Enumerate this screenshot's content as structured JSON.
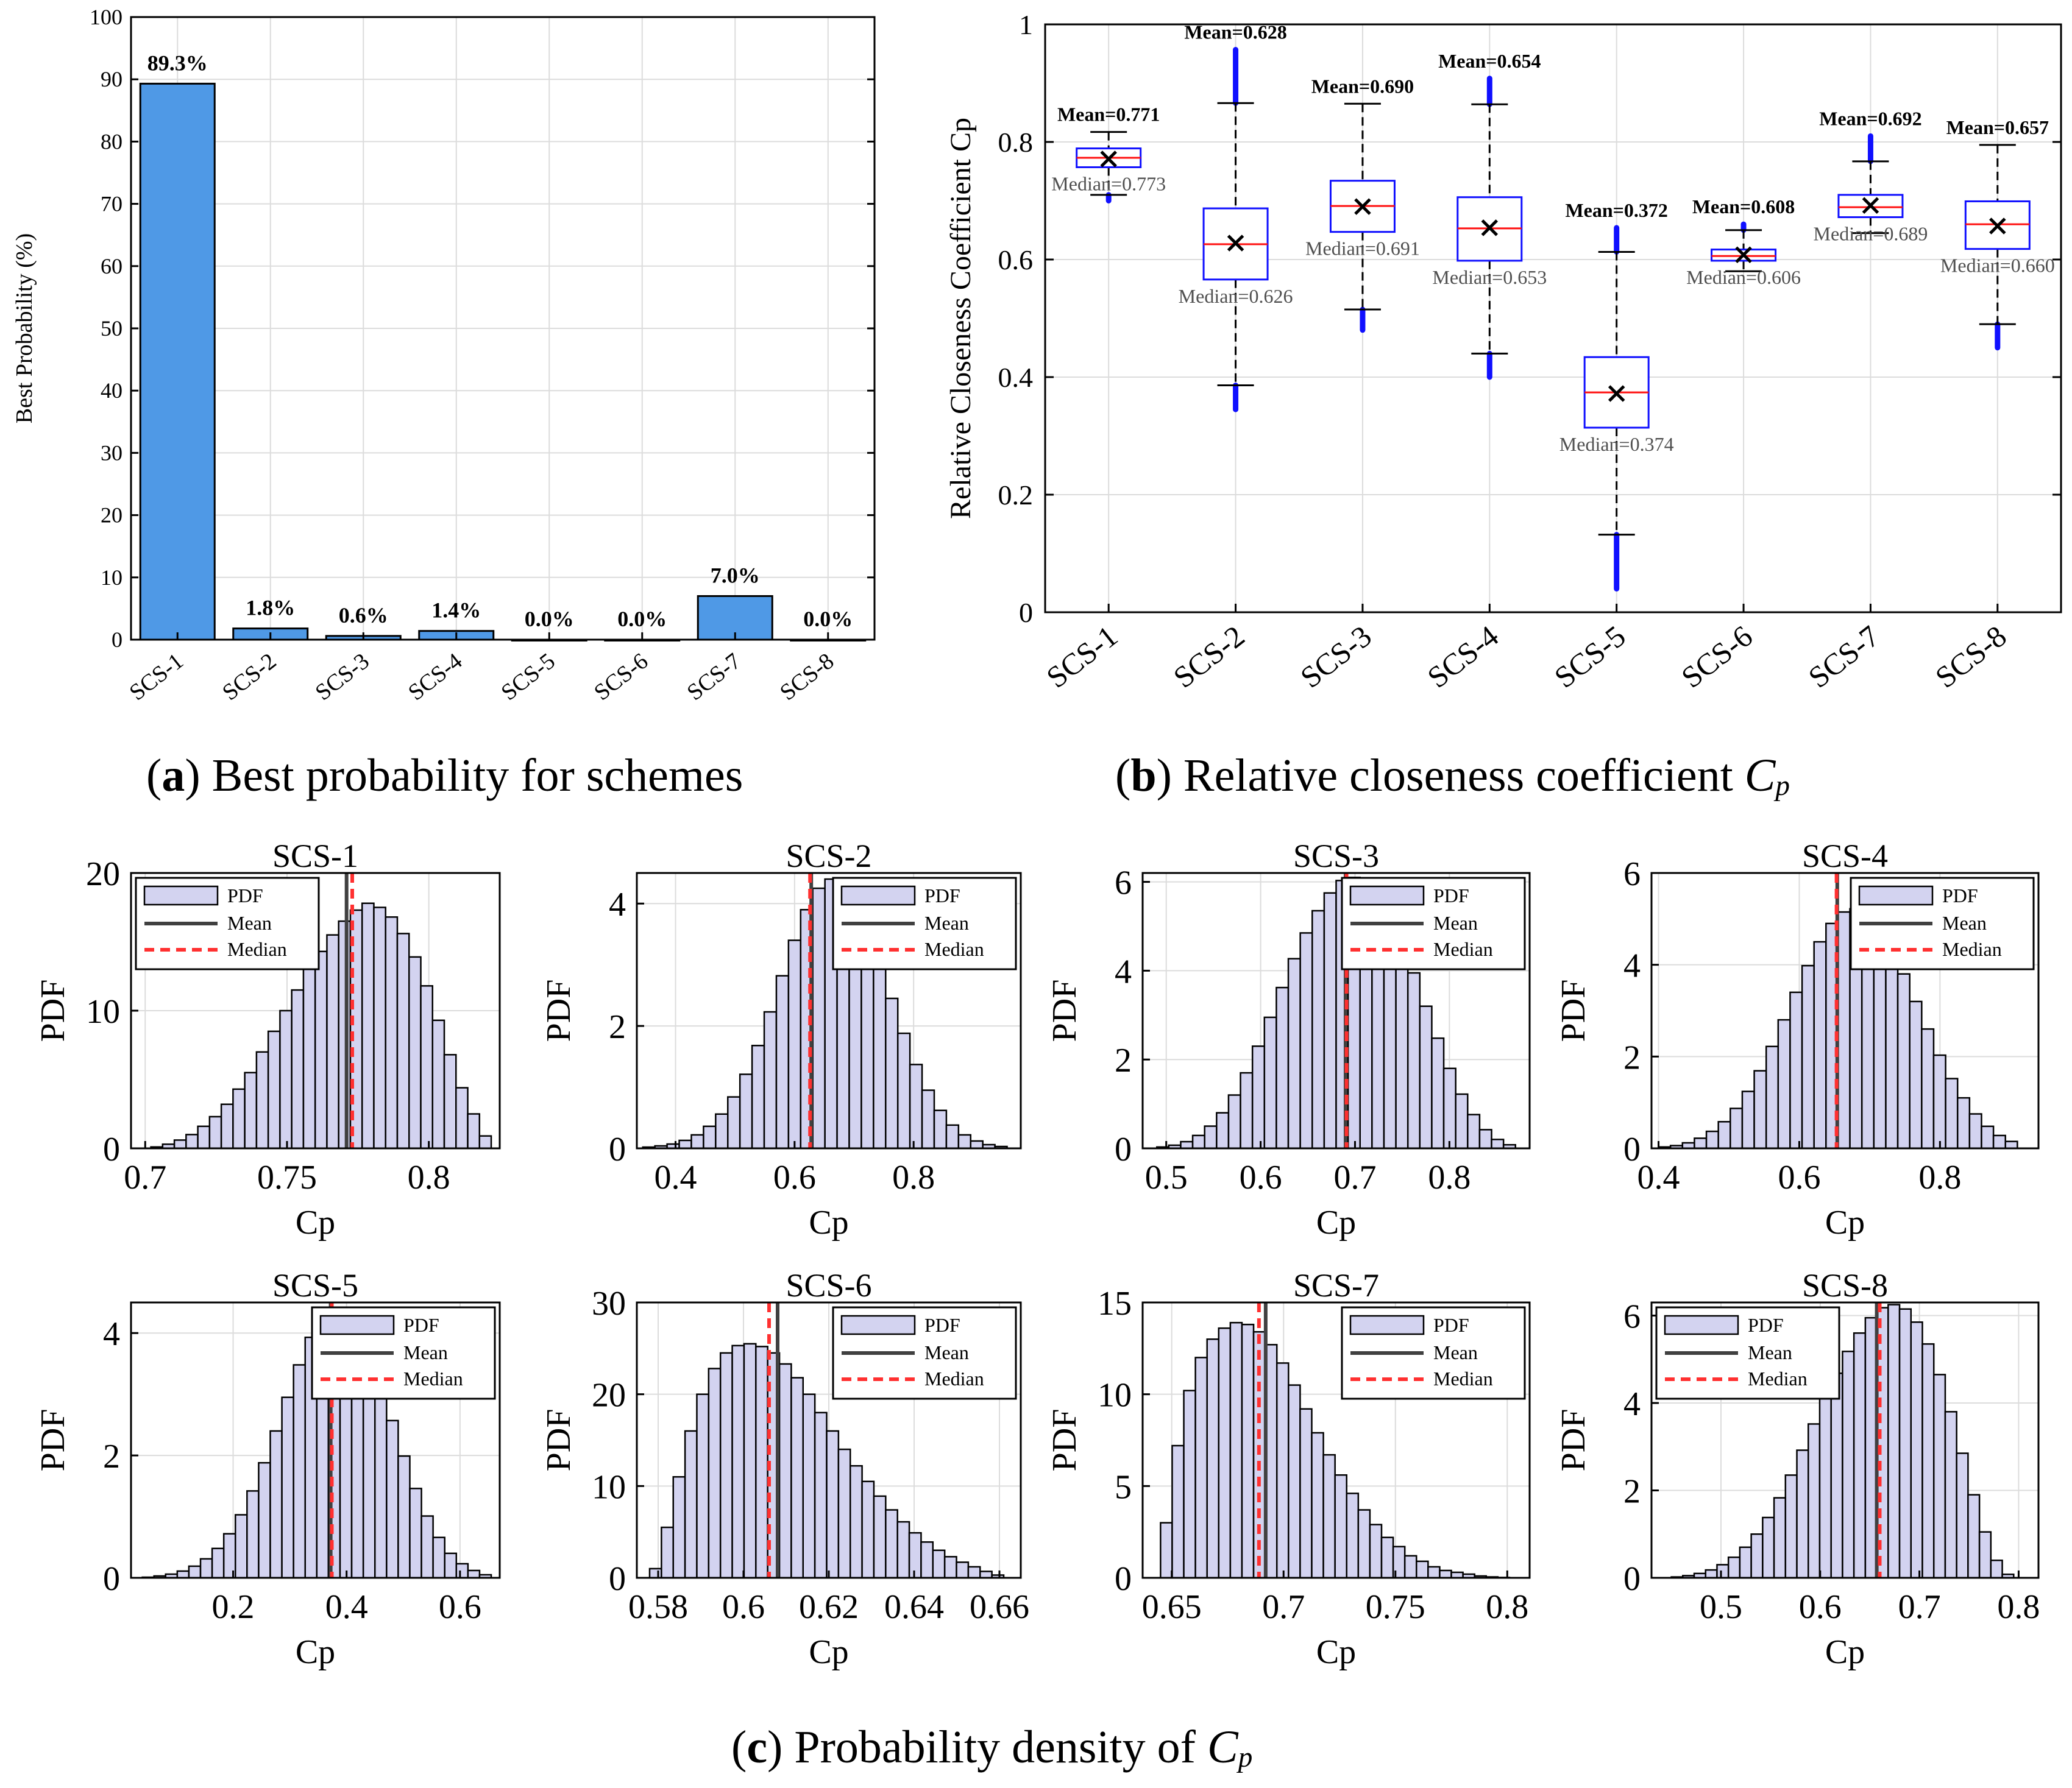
{
  "figure": {
    "caption_a": {
      "label": "a",
      "text": "Best probability for schemes"
    },
    "caption_b": {
      "label": "b",
      "text": "Relative closeness coefficient",
      "symbol": "C",
      "subscript": "p"
    },
    "caption_c": {
      "label": "c",
      "text": "Probability density of",
      "symbol": "C",
      "subscript": "p"
    }
  },
  "chart_data": [
    {
      "id": "a",
      "type": "bar",
      "ylabel": "Best Probability (%)",
      "xlabel": "",
      "categories": [
        "SCS-1",
        "SCS-2",
        "SCS-3",
        "SCS-4",
        "SCS-5",
        "SCS-6",
        "SCS-7",
        "SCS-8"
      ],
      "values": [
        89.3,
        1.8,
        0.6,
        1.4,
        0.0,
        0.0,
        7.0,
        0.0
      ],
      "data_labels": [
        "89.3%",
        "1.8%",
        "0.6%",
        "1.4%",
        "0.0%",
        "0.0%",
        "7.0%",
        "0.0%"
      ],
      "ylim": [
        0,
        100
      ],
      "yticks": [
        0,
        10,
        20,
        30,
        40,
        50,
        60,
        70,
        80,
        90,
        100
      ],
      "bar_color": "#4f99e6",
      "grid": true
    },
    {
      "id": "b",
      "type": "box",
      "ylabel": "Relative Closeness Coefficient Cp",
      "categories": [
        "SCS-1",
        "SCS-2",
        "SCS-3",
        "SCS-4",
        "SCS-5",
        "SCS-6",
        "SCS-7",
        "SCS-8"
      ],
      "ylim": [
        0,
        1
      ],
      "yticks": [
        0,
        0.2,
        0.4,
        0.6,
        0.8,
        1
      ],
      "ytick_labels": [
        "0",
        "0.2",
        "0.4",
        "0.6",
        "0.8",
        "1"
      ],
      "boxes": [
        {
          "mean": 0.771,
          "median": 0.773,
          "q1": 0.757,
          "q3": 0.789,
          "whisker_low": 0.71,
          "whisker_high": 0.817,
          "outlier_low": [
            0.7,
            0.71
          ],
          "outlier_high": null,
          "mean_label": "Mean=0.771",
          "median_label": "Median=0.773"
        },
        {
          "mean": 0.628,
          "median": 0.626,
          "q1": 0.566,
          "q3": 0.687,
          "whisker_low": 0.386,
          "whisker_high": 0.866,
          "outlier_low": [
            0.345,
            0.386
          ],
          "outlier_high": [
            0.866,
            0.957
          ],
          "mean_label": "Mean=0.628",
          "median_label": "Median=0.626"
        },
        {
          "mean": 0.69,
          "median": 0.691,
          "q1": 0.647,
          "q3": 0.734,
          "whisker_low": 0.515,
          "whisker_high": 0.865,
          "outlier_low": [
            0.48,
            0.515
          ],
          "outlier_high": null,
          "mean_label": "Mean=0.690",
          "median_label": "Median=0.691"
        },
        {
          "mean": 0.654,
          "median": 0.653,
          "q1": 0.598,
          "q3": 0.706,
          "whisker_low": 0.44,
          "whisker_high": 0.864,
          "outlier_low": [
            0.4,
            0.44
          ],
          "outlier_high": [
            0.864,
            0.908
          ],
          "mean_label": "Mean=0.654",
          "median_label": "Median=0.653"
        },
        {
          "mean": 0.372,
          "median": 0.374,
          "q1": 0.314,
          "q3": 0.434,
          "whisker_low": 0.132,
          "whisker_high": 0.613,
          "outlier_low": [
            0.04,
            0.132
          ],
          "outlier_high": [
            0.613,
            0.654
          ],
          "mean_label": "Mean=0.372",
          "median_label": "Median=0.374"
        },
        {
          "mean": 0.608,
          "median": 0.606,
          "q1": 0.598,
          "q3": 0.617,
          "whisker_low": 0.58,
          "whisker_high": 0.65,
          "outlier_low": null,
          "outlier_high": [
            0.65,
            0.66
          ],
          "mean_label": "Mean=0.608",
          "median_label": "Median=0.606"
        },
        {
          "mean": 0.692,
          "median": 0.689,
          "q1": 0.672,
          "q3": 0.71,
          "whisker_low": 0.645,
          "whisker_high": 0.767,
          "outlier_low": null,
          "outlier_high": [
            0.767,
            0.81
          ],
          "mean_label": "Mean=0.692",
          "median_label": "Median=0.689"
        },
        {
          "mean": 0.657,
          "median": 0.66,
          "q1": 0.618,
          "q3": 0.699,
          "whisker_low": 0.49,
          "whisker_high": 0.795,
          "outlier_low": [
            0.45,
            0.49
          ],
          "outlier_high": null,
          "mean_label": "Mean=0.657",
          "median_label": "Median=0.660"
        }
      ],
      "grid": true
    },
    {
      "id": "c",
      "type": "histogram",
      "legend_labels": [
        "PDF",
        "Mean",
        "Median"
      ],
      "xlabel": "Cp",
      "ylabel": "PDF",
      "bar_color": "#d3d3f0",
      "mean_color": "#404040",
      "median_color": "#ff3030",
      "subplots": [
        {
          "title": "SCS-1",
          "xlim": [
            0.695,
            0.825
          ],
          "ylim": [
            0,
            20
          ],
          "xticks": [
            0.7,
            0.75,
            0.8
          ],
          "xtick_labels": [
            "0.7",
            "0.75",
            "0.8"
          ],
          "yticks": [
            0,
            10,
            20
          ],
          "ytick_labels": [
            "0",
            "10",
            "20"
          ],
          "mean": 0.771,
          "median": 0.773,
          "hist_x0": 0.702,
          "hist_x1": 0.822,
          "densities": [
            0.1,
            0.3,
            0.6,
            1.0,
            1.6,
            2.3,
            3.2,
            4.3,
            5.5,
            7.0,
            8.5,
            10.0,
            11.5,
            13.0,
            14.3,
            15.5,
            16.5,
            17.3,
            17.8,
            17.5,
            16.8,
            15.6,
            13.9,
            11.8,
            9.3,
            6.8,
            4.4,
            2.5,
            0.9
          ],
          "legend_pos": "left"
        },
        {
          "title": "SCS-2",
          "xlim": [
            0.335,
            0.98
          ],
          "ylim": [
            0,
            4.5
          ],
          "xticks": [
            0.4,
            0.6,
            0.8
          ],
          "xtick_labels": [
            "0.4",
            "0.6",
            "0.8"
          ],
          "yticks": [
            0,
            2,
            4
          ],
          "ytick_labels": [
            "0",
            "2",
            "4"
          ],
          "mean": 0.628,
          "median": 0.626,
          "hist_x0": 0.345,
          "hist_x1": 0.957,
          "densities": [
            0.02,
            0.04,
            0.07,
            0.13,
            0.22,
            0.36,
            0.56,
            0.84,
            1.21,
            1.68,
            2.23,
            2.82,
            3.4,
            3.9,
            4.25,
            4.4,
            4.33,
            4.05,
            3.6,
            3.05,
            2.45,
            1.88,
            1.37,
            0.95,
            0.62,
            0.38,
            0.22,
            0.12,
            0.06,
            0.03
          ],
          "legend_pos": "right"
        },
        {
          "title": "SCS-3",
          "xlim": [
            0.475,
            0.885
          ],
          "ylim": [
            0,
            6.2
          ],
          "xticks": [
            0.5,
            0.6,
            0.7,
            0.8
          ],
          "xtick_labels": [
            "0.5",
            "0.6",
            "0.7",
            "0.8"
          ],
          "yticks": [
            0,
            2,
            4,
            6
          ],
          "ytick_labels": [
            "0",
            "2",
            "4",
            "6"
          ],
          "mean": 0.69,
          "median": 0.691,
          "hist_x0": 0.49,
          "hist_x1": 0.87,
          "densities": [
            0.03,
            0.07,
            0.15,
            0.29,
            0.5,
            0.8,
            1.2,
            1.7,
            2.3,
            2.95,
            3.62,
            4.27,
            4.85,
            5.35,
            5.75,
            6.03,
            6.1,
            6.0,
            5.7,
            5.25,
            4.65,
            3.95,
            3.2,
            2.48,
            1.8,
            1.22,
            0.76,
            0.42,
            0.2,
            0.08
          ],
          "legend_pos": "right"
        },
        {
          "title": "SCS-4",
          "xlim": [
            0.39,
            0.94
          ],
          "ylim": [
            0,
            6
          ],
          "xticks": [
            0.4,
            0.6,
            0.8
          ],
          "xtick_labels": [
            "0.4",
            "0.6",
            "0.8"
          ],
          "yticks": [
            0,
            2,
            4,
            6
          ],
          "ytick_labels": [
            "0",
            "2",
            "4",
            "6"
          ],
          "mean": 0.654,
          "median": 0.653,
          "hist_x0": 0.4,
          "hist_x1": 0.91,
          "densities": [
            0.03,
            0.06,
            0.12,
            0.22,
            0.37,
            0.58,
            0.87,
            1.24,
            1.69,
            2.22,
            2.8,
            3.4,
            3.98,
            4.5,
            4.9,
            5.15,
            5.22,
            5.1,
            4.8,
            4.35,
            3.8,
            3.2,
            2.6,
            2.03,
            1.52,
            1.1,
            0.75,
            0.48,
            0.28,
            0.15
          ],
          "legend_pos": "right"
        },
        {
          "title": "SCS-5",
          "xlim": [
            0.02,
            0.67
          ],
          "ylim": [
            0,
            4.5
          ],
          "xticks": [
            0.2,
            0.4,
            0.6
          ],
          "xtick_labels": [
            "0.2",
            "0.4",
            "0.6"
          ],
          "yticks": [
            0,
            2,
            4
          ],
          "ytick_labels": [
            "0",
            "2",
            "4"
          ],
          "mean": 0.372,
          "median": 0.374,
          "hist_x0": 0.04,
          "hist_x1": 0.655,
          "densities": [
            0.01,
            0.03,
            0.06,
            0.11,
            0.19,
            0.31,
            0.48,
            0.72,
            1.03,
            1.42,
            1.88,
            2.4,
            2.95,
            3.48,
            3.93,
            4.25,
            4.4,
            4.35,
            4.1,
            3.68,
            3.15,
            2.57,
            1.99,
            1.46,
            1.01,
            0.66,
            0.4,
            0.23,
            0.12,
            0.05
          ],
          "legend_pos": "right"
        },
        {
          "title": "SCS-6",
          "xlim": [
            0.575,
            0.665
          ],
          "ylim": [
            0,
            30
          ],
          "xticks": [
            0.58,
            0.6,
            0.62,
            0.64,
            0.66
          ],
          "xtick_labels": [
            "0.58",
            "0.6",
            "0.62",
            "0.64",
            "0.66"
          ],
          "yticks": [
            0,
            10,
            20,
            30
          ],
          "ytick_labels": [
            "0",
            "10",
            "20",
            "30"
          ],
          "mean": 0.608,
          "median": 0.606,
          "hist_x0": 0.578,
          "hist_x1": 0.661,
          "densities": [
            1.0,
            5.5,
            11.0,
            16.0,
            20.0,
            22.8,
            24.5,
            25.3,
            25.5,
            25.2,
            24.5,
            23.3,
            21.8,
            20.0,
            18.0,
            16.0,
            14.0,
            12.2,
            10.5,
            8.9,
            7.4,
            6.1,
            4.9,
            3.9,
            3.0,
            2.3,
            1.7,
            1.2,
            0.7,
            0.3
          ],
          "legend_pos": "right"
        },
        {
          "title": "SCS-7",
          "xlim": [
            0.637,
            0.81
          ],
          "ylim": [
            0,
            15
          ],
          "xticks": [
            0.65,
            0.7,
            0.75,
            0.8
          ],
          "xtick_labels": [
            "0.65",
            "0.7",
            "0.75",
            "0.8"
          ],
          "yticks": [
            0,
            5,
            10,
            15
          ],
          "ytick_labels": [
            "0",
            "5",
            "10",
            "15"
          ],
          "mean": 0.692,
          "median": 0.689,
          "hist_x0": 0.645,
          "hist_x1": 0.801,
          "densities": [
            3.0,
            7.2,
            10.2,
            12.0,
            13.0,
            13.6,
            13.9,
            13.8,
            13.4,
            12.7,
            11.7,
            10.5,
            9.2,
            7.9,
            6.7,
            5.6,
            4.6,
            3.7,
            2.9,
            2.2,
            1.7,
            1.2,
            0.9,
            0.6,
            0.4,
            0.3,
            0.2,
            0.1,
            0.05,
            0.02
          ],
          "legend_pos": "right"
        },
        {
          "title": "SCS-8",
          "xlim": [
            0.43,
            0.82
          ],
          "ylim": [
            0,
            6.3
          ],
          "xticks": [
            0.5,
            0.6,
            0.7,
            0.8
          ],
          "xtick_labels": [
            "0.5",
            "0.6",
            "0.7",
            "0.8"
          ],
          "yticks": [
            0,
            2,
            4,
            6
          ],
          "ytick_labels": [
            "0",
            "2",
            "4",
            "6"
          ],
          "mean": 0.657,
          "median": 0.66,
          "hist_x0": 0.45,
          "hist_x1": 0.795,
          "densities": [
            0.02,
            0.05,
            0.1,
            0.18,
            0.3,
            0.47,
            0.7,
            1.0,
            1.38,
            1.83,
            2.35,
            2.92,
            3.52,
            4.12,
            4.68,
            5.18,
            5.6,
            5.95,
            6.18,
            6.25,
            6.15,
            5.85,
            5.35,
            4.65,
            3.8,
            2.85,
            1.9,
            1.05,
            0.4,
            0.08
          ],
          "legend_pos": "left"
        }
      ]
    }
  ]
}
